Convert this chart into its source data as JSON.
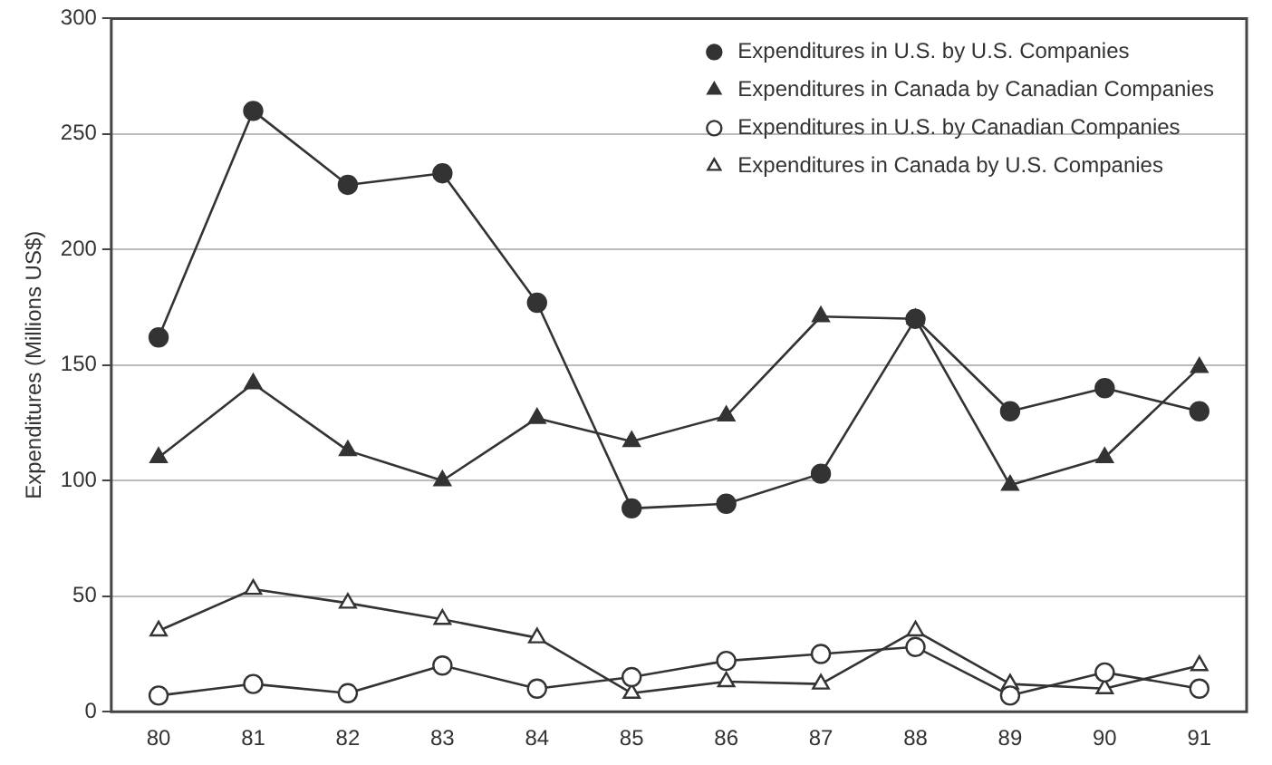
{
  "chart_data": {
    "type": "line",
    "ylabel": "Expenditures (Millions US$)",
    "categories": [
      "80",
      "81",
      "82",
      "83",
      "84",
      "85",
      "86",
      "87",
      "88",
      "89",
      "90",
      "91"
    ],
    "series": [
      {
        "name": "Expenditures in U.S. by U.S. Companies",
        "color": "#333333",
        "marker": "circle",
        "values": [
          162,
          260,
          228,
          233,
          177,
          88,
          90,
          103,
          170,
          130,
          140,
          130
        ]
      },
      {
        "name": "Expenditures in Canada by Canadian Companies",
        "color": "#333333",
        "marker": "triangle",
        "values": [
          110,
          142,
          113,
          100,
          127,
          117,
          128,
          171,
          170,
          98,
          110,
          149
        ]
      },
      {
        "name": "Expenditures in U.S. by Canadian Companies",
        "color": "#333333",
        "marker": "circle",
        "values": [
          7,
          12,
          8,
          20,
          10,
          15,
          22,
          25,
          28,
          7,
          17,
          10
        ]
      },
      {
        "name": "Expenditures in Canada by U.S. Companies",
        "color": "#333333",
        "marker": "triangle",
        "values": [
          35,
          53,
          47,
          40,
          32,
          8,
          13,
          12,
          35,
          12,
          10,
          20
        ]
      }
    ],
    "ylim": [
      0,
      300
    ],
    "yticks": [
      0,
      50,
      100,
      150,
      200,
      250,
      300
    ],
    "grid": "y",
    "legend": "top right",
    "line_style": "solid"
  }
}
